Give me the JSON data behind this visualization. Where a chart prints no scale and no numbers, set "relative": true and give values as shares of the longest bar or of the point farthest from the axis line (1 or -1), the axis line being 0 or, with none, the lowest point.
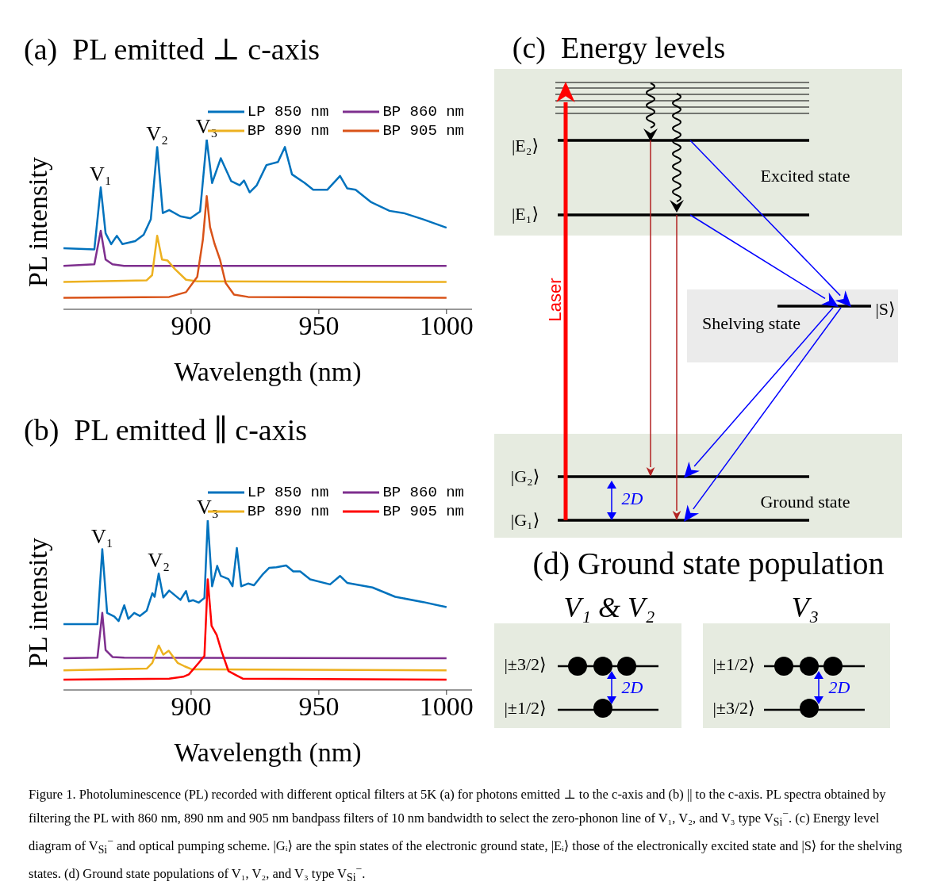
{
  "chart_data": [
    {
      "type": "line",
      "title": "(a)  PL emitted ⊥ c-axis",
      "xlabel": "Wavelength (nm)",
      "ylabel": "PL intensity",
      "relative": true,
      "xlim": [
        850,
        1010
      ],
      "xticks": [
        900,
        950,
        1000
      ],
      "legend": "top right",
      "annotations": [
        {
          "text": "V₁",
          "x": 864.6,
          "y": 0.718
        },
        {
          "text": "V₂",
          "x": 886.7,
          "y": 0.956
        },
        {
          "text": "V₃",
          "x": 906.1,
          "y": 1.0
        }
      ],
      "series": [
        {
          "name": "LP 850 nm",
          "color": "#0072bd",
          "x": [
            850,
            862.1,
            864.6,
            866.5,
            868.7,
            870.9,
            873.1,
            878.1,
            881.4,
            884.2,
            886.7,
            888.9,
            891.4,
            895.8,
            899.7,
            903.5,
            906.1,
            908.2,
            911.6,
            915.7,
            919.0,
            920.7,
            922.9,
            925.7,
            929.5,
            934.0,
            936.7,
            939.5,
            944.5,
            947.8,
            953.3,
            958.3,
            961.1,
            964.4,
            970.5,
            977.7,
            983.2,
            990.9,
            1000
          ],
          "values": [
            0.36,
            0.353,
            0.718,
            0.448,
            0.384,
            0.433,
            0.384,
            0.402,
            0.439,
            0.53,
            0.956,
            0.567,
            0.585,
            0.548,
            0.536,
            0.576,
            1.0,
            0.744,
            0.89,
            0.755,
            0.731,
            0.759,
            0.689,
            0.731,
            0.85,
            0.868,
            0.956,
            0.795,
            0.744,
            0.704,
            0.704,
            0.786,
            0.713,
            0.704,
            0.631,
            0.58,
            0.567,
            0.53,
            0.481
          ]
        },
        {
          "name": "BP 860 nm",
          "color": "#7e2f8e",
          "x": [
            850,
            862.1,
            864.6,
            866.5,
            869.2,
            873.7,
            1000
          ],
          "values": [
            0.256,
            0.265,
            0.463,
            0.293,
            0.265,
            0.256,
            0.256
          ]
        },
        {
          "name": "BP 890 nm",
          "color": "#edb120",
          "x": [
            850,
            882.5,
            884.7,
            886.7,
            888.6,
            890.8,
            893.6,
            898.0,
            902.4,
            1000
          ],
          "values": [
            0.161,
            0.17,
            0.201,
            0.433,
            0.293,
            0.287,
            0.238,
            0.174,
            0.165,
            0.161
          ]
        },
        {
          "name": "BP 905 nm",
          "color": "#d95319",
          "x": [
            850,
            891.4,
            898.0,
            902.4,
            904.6,
            906.1,
            907.4,
            909.1,
            911.3,
            913.5,
            916.8,
            922.3,
            1000
          ],
          "values": [
            0.068,
            0.073,
            0.101,
            0.192,
            0.411,
            0.667,
            0.484,
            0.389,
            0.293,
            0.155,
            0.086,
            0.073,
            0.068
          ]
        }
      ]
    },
    {
      "type": "line",
      "title": "(b)  PL emitted ∥ c-axis",
      "xlabel": "Wavelength (nm)",
      "ylabel": "PL intensity",
      "relative": true,
      "xlim": [
        850,
        1010
      ],
      "xticks": [
        900,
        950,
        1000
      ],
      "legend": "top right",
      "annotations": [
        {
          "text": "V₁",
          "x": 865.2,
          "y": 0.829
        },
        {
          "text": "V₂",
          "x": 887.3,
          "y": 0.686
        },
        {
          "text": "V₃",
          "x": 906.5,
          "y": 1.0
        }
      ],
      "series": [
        {
          "name": "LP 850 nm",
          "color": "#0072bd",
          "x": [
            850,
            863.3,
            865.2,
            867.1,
            869.9,
            871.6,
            873.8,
            875.4,
            877.7,
            879.9,
            882.6,
            884.8,
            885.7,
            887.3,
            889.1,
            891.4,
            895.8,
            898.0,
            899.1,
            900.8,
            903.0,
            905.2,
            906.5,
            908.2,
            910.2,
            911.6,
            914.6,
            916.2,
            917.9,
            919.6,
            922.3,
            924.6,
            927.9,
            930.6,
            933.4,
            937.2,
            940.0,
            942.7,
            946.6,
            954.4,
            958.3,
            961.1,
            971.0,
            979.9,
            990.9,
            1000
          ],
          "values": [
            0.388,
            0.388,
            0.829,
            0.454,
            0.433,
            0.406,
            0.499,
            0.419,
            0.454,
            0.436,
            0.467,
            0.57,
            0.549,
            0.686,
            0.545,
            0.586,
            0.531,
            0.583,
            0.522,
            0.529,
            0.515,
            0.542,
            1.0,
            0.611,
            0.731,
            0.672,
            0.654,
            0.611,
            0.836,
            0.611,
            0.627,
            0.617,
            0.679,
            0.72,
            0.723,
            0.734,
            0.699,
            0.699,
            0.652,
            0.622,
            0.672,
            0.631,
            0.604,
            0.549,
            0.518,
            0.488
          ]
        },
        {
          "name": "BP 860 nm",
          "color": "#7e2f8e",
          "x": [
            850,
            863.3,
            865.2,
            866.5,
            869.2,
            873.8,
            1000
          ],
          "values": [
            0.187,
            0.19,
            0.454,
            0.235,
            0.194,
            0.19,
            0.187
          ]
        },
        {
          "name": "BP 890 nm",
          "color": "#edb120",
          "x": [
            850,
            882.6,
            884.8,
            887.3,
            889.1,
            891.2,
            894.7,
            897.5,
            900.2,
            1000
          ],
          "values": [
            0.116,
            0.126,
            0.16,
            0.262,
            0.208,
            0.231,
            0.16,
            0.139,
            0.122,
            0.116
          ]
        },
        {
          "name": "BP 905 nm",
          "color": "#ff0000",
          "x": [
            850,
            891.4,
            896.9,
            899.1,
            903.0,
            905.2,
            906.5,
            908.0,
            910.0,
            911.9,
            914.6,
            917.9,
            920.2,
            1000
          ],
          "values": [
            0.061,
            0.067,
            0.078,
            0.092,
            0.16,
            0.201,
            0.652,
            0.378,
            0.324,
            0.228,
            0.112,
            0.085,
            0.067,
            0.061
          ]
        }
      ]
    },
    {
      "type": "other",
      "title": "(c)  Energy levels",
      "annotations": [
        "|E₂⟩",
        "|E₁⟩",
        "Excited state",
        "Laser",
        "Shelving state",
        "|S⟩",
        "|G₂⟩",
        "|G₁⟩",
        "2D",
        "Ground state"
      ]
    },
    {
      "type": "other",
      "title": "(d) Ground state population",
      "annotations": [
        "V₁ & V₂",
        "V₃",
        "|±3/2⟩",
        "|±1/2⟩",
        "2D",
        "|±1/2⟩",
        "|±3/2⟩",
        "2D",
        "Figure 1. Photoluminescence (PL) recorded with different optical filters at 5K (a) for photons emitted ⊥ to the c-axis and (b) || to the c-axis. PL spectra obtained by filtering the PL with 860 nm, 890 nm and 905 nm bandpass filters of 10 nm bandwidth to select the zero-phonon line of V₁, V₂, and V₃ type V$_{Si}$$^{−}$. (c) Energy level diagram of V$_{Si}$$^{−}$ and optical pumping scheme. |Gᵢ⟩ are the spin states of the electronic ground state, |Eᵢ⟩ those of the electronically excited state and |S⟩ for the shelving states. (d) Ground state populations of V₁, V₂, and V₃ type V$_{Si}$$^{−}$."
      ]
    }
  ]
}
